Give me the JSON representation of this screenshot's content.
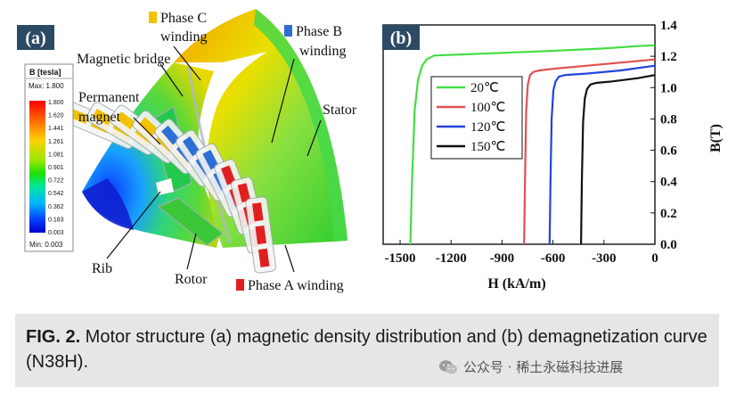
{
  "panel_a": {
    "label": "(a)",
    "colorbar": {
      "title": "B [tesla]",
      "max_label": "Max: 1.800",
      "min_label": "Min: 0.003",
      "ticks": [
        "1.800",
        "1.620",
        "1.441",
        "1.261",
        "1.081",
        "0.901",
        "0.722",
        "0.542",
        "0.362",
        "0.183",
        "0.003"
      ]
    },
    "annotations": {
      "phase_c_1": "Phase C",
      "phase_c_2": "winding",
      "phase_b_1": "Phase B",
      "phase_b_2": "winding",
      "magnetic_bridge": "Magnetic bridge",
      "permanent_1": "Permanent",
      "permanent_2": "magnet",
      "stator": "Stator",
      "rib": "Rib",
      "rotor": "Rotor",
      "phase_a": "Phase A winding"
    },
    "colors": {
      "phase_a": "#e02020",
      "phase_b": "#2d6fd6",
      "phase_c": "#f2c200"
    }
  },
  "chart_data": {
    "type": "line",
    "panel_label": "(b)",
    "xlabel": "H (kA/m)",
    "ylabel": "B(T)",
    "xlim": [
      -1600,
      0
    ],
    "ylim": [
      0,
      1.4
    ],
    "xticks": [
      -1500,
      -1200,
      -900,
      -600,
      -300,
      0
    ],
    "yticks": [
      0.0,
      0.2,
      0.4,
      0.6,
      0.8,
      1.0,
      1.2,
      1.4
    ],
    "xtick_labels": [
      "-1500",
      "-1200",
      "-900",
      "-600",
      "-300",
      "0"
    ],
    "ytick_labels": [
      "0.0",
      "0.2",
      "0.4",
      "0.6",
      "0.8",
      "1.0",
      "1.2",
      "1.4"
    ],
    "grid": false,
    "legend_position": "upper-left",
    "series": [
      {
        "name": "20℃",
        "color": "#44dd44",
        "x": [
          -1440,
          -1430,
          -1415,
          -1395,
          -1370,
          -1345,
          -1300,
          -900,
          -600,
          -300,
          -100,
          0
        ],
        "y": [
          0.0,
          0.4,
          0.85,
          1.05,
          1.14,
          1.18,
          1.205,
          1.222,
          1.235,
          1.25,
          1.265,
          1.27
        ]
      },
      {
        "name": "100℃",
        "color": "#e05050",
        "x": [
          -770,
          -765,
          -758,
          -748,
          -735,
          -715,
          -680,
          -600,
          -400,
          -200,
          0
        ],
        "y": [
          0.0,
          0.4,
          0.85,
          1.02,
          1.08,
          1.1,
          1.11,
          1.12,
          1.14,
          1.16,
          1.18
        ]
      },
      {
        "name": "120℃",
        "color": "#2244dd",
        "x": [
          -620,
          -615,
          -608,
          -598,
          -585,
          -565,
          -530,
          -400,
          -200,
          0
        ],
        "y": [
          0.0,
          0.4,
          0.8,
          0.98,
          1.04,
          1.07,
          1.08,
          1.09,
          1.11,
          1.14
        ]
      },
      {
        "name": "150℃",
        "color": "#111111",
        "x": [
          -435,
          -430,
          -423,
          -413,
          -400,
          -380,
          -345,
          -250,
          -100,
          0
        ],
        "y": [
          0.0,
          0.4,
          0.78,
          0.93,
          0.99,
          1.02,
          1.03,
          1.04,
          1.06,
          1.08
        ]
      }
    ]
  },
  "caption": {
    "label": "FIG. 2.",
    "text": " Motor structure (a) magnetic density distribution and (b) demagnetization curve (N38H)."
  },
  "watermark": {
    "icon": "wechat-icon",
    "text": "公众号 · 稀土永磁科技进展"
  }
}
